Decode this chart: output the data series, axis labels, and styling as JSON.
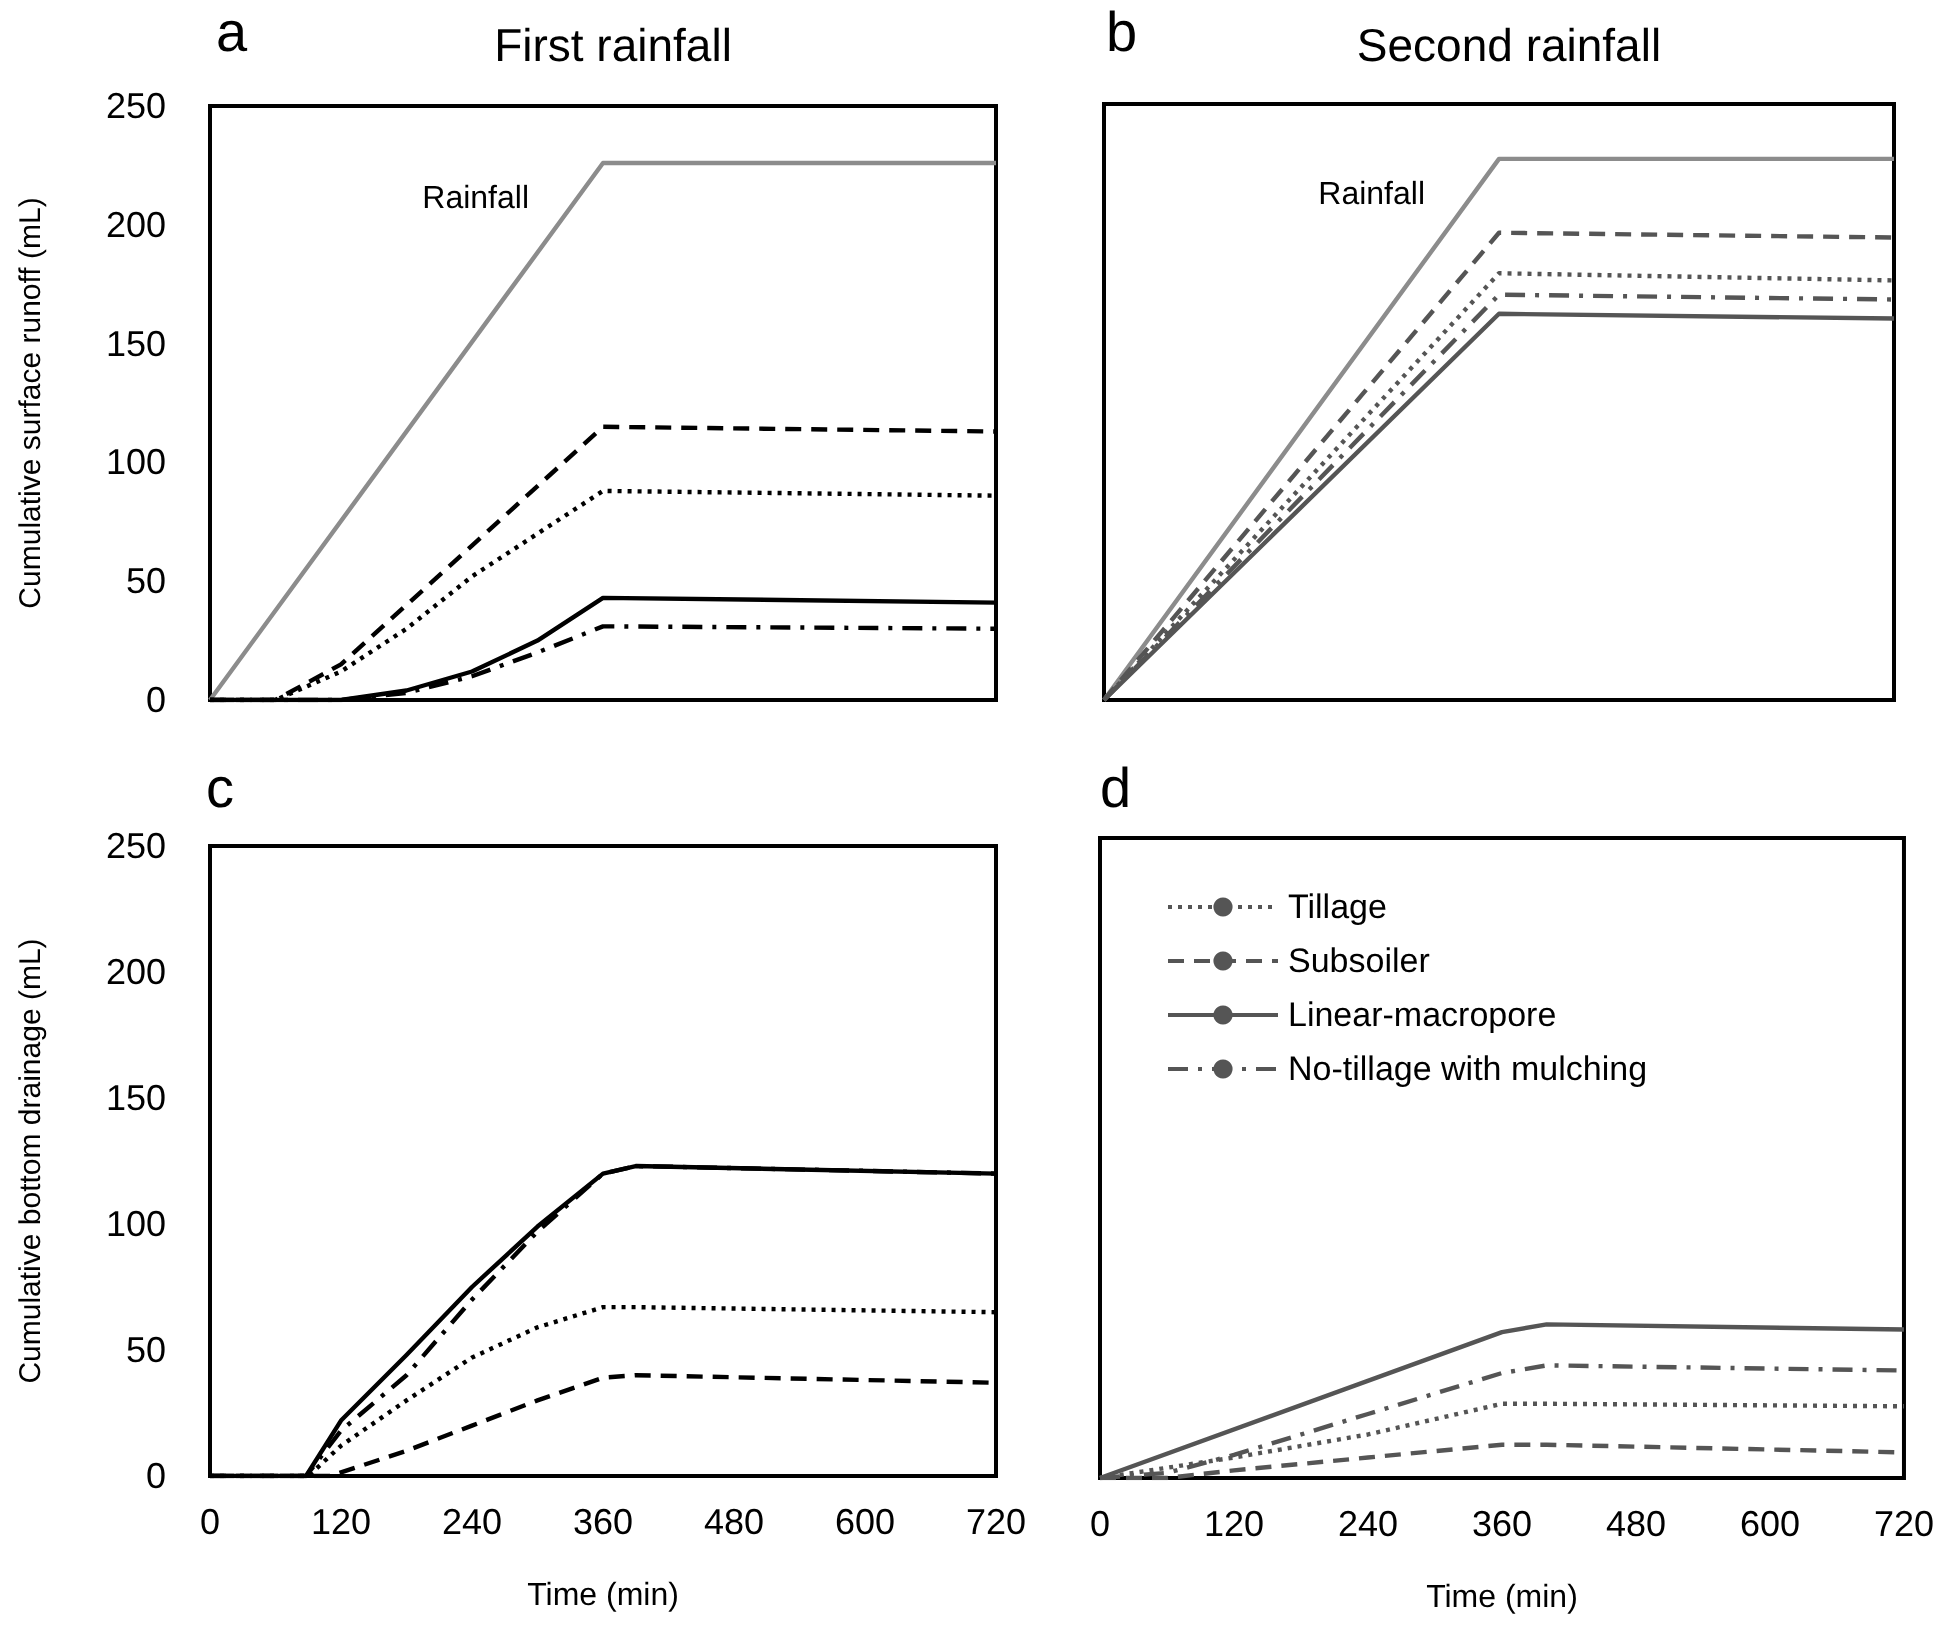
{
  "chart_data": [
    {
      "type": "line",
      "title": "First rainfall",
      "ylabel": "Cumulative surface runoff (mL)",
      "annotations": [
        "a"
      ],
      "xlim": [
        0,
        720
      ],
      "xticks": [
        0,
        120,
        240,
        360,
        480,
        600,
        720
      ],
      "ylim": [
        0,
        250
      ],
      "yticks": [
        0,
        50,
        100,
        150,
        200,
        250
      ],
      "tick_labels": "y",
      "grid": false,
      "legend": false,
      "marker": "none",
      "series": [
        {
          "name": "Rainfall",
          "color": "#8c8c8c",
          "line_style": "solid",
          "x": [
            0,
            360,
            720
          ],
          "values": [
            0,
            226,
            226
          ]
        },
        {
          "color": "#000000",
          "line_style": "dotted",
          "x": [
            0,
            60,
            120,
            180,
            240,
            300,
            360,
            720
          ],
          "values": [
            0,
            0,
            12,
            30,
            52,
            70,
            88,
            86
          ]
        },
        {
          "color": "#000000",
          "line_style": "dashed",
          "x": [
            0,
            60,
            120,
            180,
            240,
            300,
            360,
            720
          ],
          "values": [
            0,
            0,
            15,
            40,
            65,
            90,
            115,
            113
          ]
        },
        {
          "color": "#000000",
          "line_style": "solid",
          "x": [
            0,
            120,
            180,
            240,
            300,
            360,
            720
          ],
          "values": [
            0,
            0,
            4,
            12,
            25,
            43,
            41
          ]
        },
        {
          "color": "#000000",
          "line_style": "dashdot",
          "x": [
            0,
            120,
            180,
            240,
            300,
            360,
            720
          ],
          "values": [
            0,
            0,
            3,
            10,
            20,
            31,
            30
          ]
        }
      ]
    },
    {
      "type": "line",
      "title": "Second rainfall",
      "annotations": [
        "b"
      ],
      "xlim": [
        0,
        720
      ],
      "xticks": [
        0,
        120,
        240,
        360,
        480,
        600,
        720
      ],
      "ylim": [
        0,
        250
      ],
      "yticks": [
        0,
        50,
        100,
        150,
        200,
        250
      ],
      "tick_labels": false,
      "grid": false,
      "legend": false,
      "marker": "none",
      "series": [
        {
          "name": "Rainfall",
          "color": "#8c8c8c",
          "line_style": "solid",
          "x": [
            0,
            360,
            720
          ],
          "values": [
            0,
            227,
            227
          ]
        },
        {
          "color": "#555555",
          "line_style": "dotted",
          "x": [
            0,
            360,
            720
          ],
          "values": [
            0,
            179,
            176
          ]
        },
        {
          "color": "#555555",
          "line_style": "dashed",
          "x": [
            0,
            360,
            720
          ],
          "values": [
            0,
            196,
            194
          ]
        },
        {
          "color": "#555555",
          "line_style": "solid",
          "x": [
            0,
            360,
            720
          ],
          "values": [
            0,
            162,
            160
          ]
        },
        {
          "color": "#555555",
          "line_style": "dashdot",
          "x": [
            0,
            360,
            720
          ],
          "values": [
            0,
            170,
            168
          ]
        }
      ]
    },
    {
      "type": "line",
      "xlabel": "Time (min)",
      "ylabel": "Cumulative bottom drainage (mL)",
      "annotations": [
        "c"
      ],
      "xlim": [
        0,
        720
      ],
      "xticks": [
        0,
        120,
        240,
        360,
        480,
        600,
        720
      ],
      "ylim": [
        0,
        250
      ],
      "yticks": [
        0,
        50,
        100,
        150,
        200,
        250
      ],
      "grid": false,
      "legend": false,
      "marker": "none",
      "series": [
        {
          "color": "#000000",
          "line_style": "dotted",
          "x": [
            0,
            90,
            120,
            180,
            240,
            300,
            360,
            390,
            720
          ],
          "values": [
            0,
            0,
            12,
            30,
            47,
            59,
            67,
            67,
            65
          ]
        },
        {
          "color": "#000000",
          "line_style": "dashed",
          "x": [
            0,
            110,
            180,
            240,
            300,
            360,
            390,
            720
          ],
          "values": [
            0,
            0,
            10,
            20,
            30,
            39,
            40,
            37
          ]
        },
        {
          "color": "#000000",
          "line_style": "solid",
          "x": [
            0,
            88,
            120,
            180,
            240,
            300,
            360,
            390,
            720
          ],
          "values": [
            0,
            0,
            22,
            48,
            75,
            99,
            120,
            123,
            120
          ]
        },
        {
          "color": "#000000",
          "line_style": "dashdot",
          "x": [
            0,
            88,
            120,
            180,
            240,
            300,
            360,
            390,
            720
          ],
          "values": [
            0,
            0,
            18,
            40,
            70,
            97,
            120,
            123,
            120
          ]
        }
      ]
    },
    {
      "type": "line",
      "xlabel": "Time (min)",
      "annotations": [
        "d"
      ],
      "xlim": [
        0,
        720
      ],
      "xticks": [
        0,
        120,
        240,
        360,
        480,
        600,
        720
      ],
      "ylim": [
        0,
        250
      ],
      "yticks": [
        0,
        50,
        100,
        150,
        200,
        250
      ],
      "tick_labels": "x",
      "grid": false,
      "legend": "top left",
      "marker": "none",
      "series": [
        {
          "name": "Tillage",
          "color": "#555555",
          "line_style": "dotted",
          "x": [
            0,
            120,
            240,
            360,
            400,
            720
          ],
          "values": [
            0,
            8,
            17,
            29,
            29,
            28
          ]
        },
        {
          "name": "Subsoiler",
          "color": "#555555",
          "line_style": "dashed",
          "x": [
            0,
            60,
            120,
            240,
            360,
            400,
            720
          ],
          "values": [
            0,
            0,
            3,
            8,
            13,
            13,
            10
          ]
        },
        {
          "name": "Linear-macropore",
          "color": "#555555",
          "line_style": "solid",
          "x": [
            0,
            360,
            400,
            720
          ],
          "values": [
            0,
            57,
            60,
            58
          ]
        },
        {
          "name": "No-tillage with mulching",
          "color": "#555555",
          "line_style": "dashdot",
          "x": [
            0,
            60,
            120,
            240,
            360,
            400,
            720
          ],
          "values": [
            0,
            2,
            9,
            25,
            41,
            44,
            42
          ]
        }
      ]
    }
  ]
}
